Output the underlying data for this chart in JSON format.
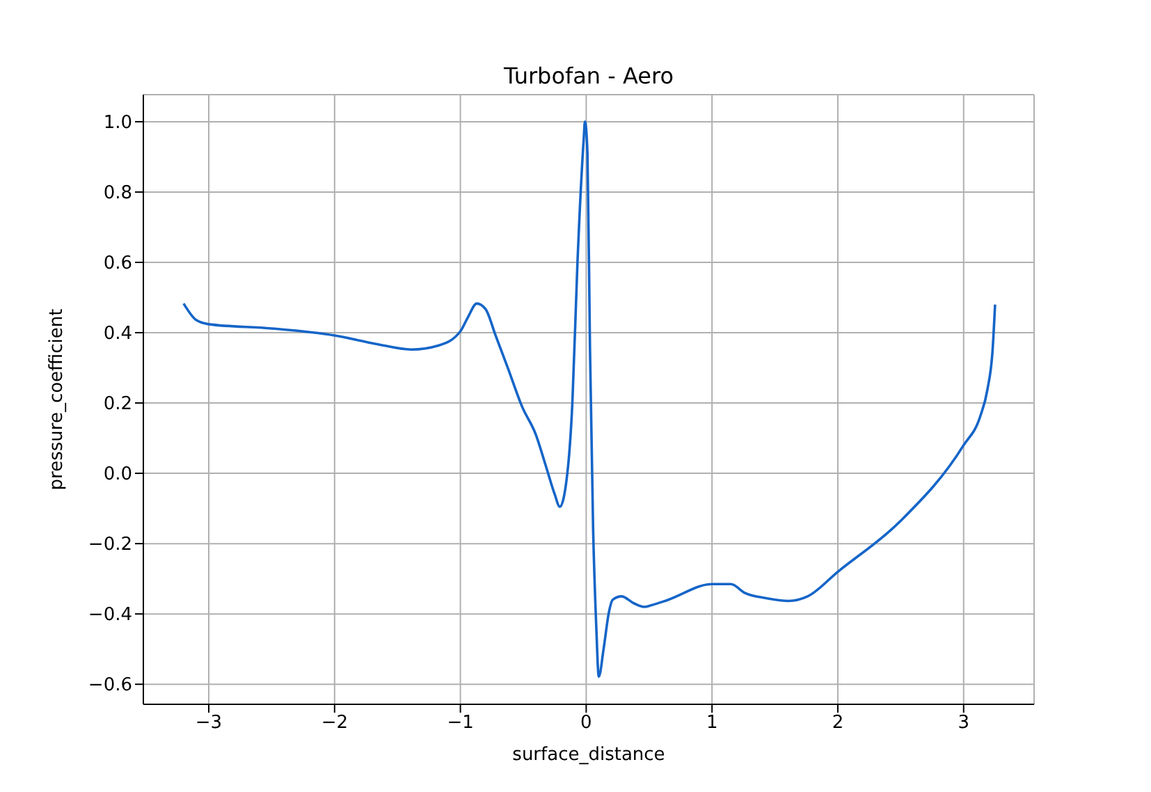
{
  "chart_data": {
    "type": "line",
    "title": "Turbofan - Aero",
    "xlabel": "surface_distance",
    "ylabel": "pressure_coefficient",
    "xlim": [
      -3.52,
      3.56
    ],
    "ylim": [
      -0.657,
      1.077
    ],
    "xticks": [
      {
        "value": -3,
        "label": "−3"
      },
      {
        "value": -2,
        "label": "−2"
      },
      {
        "value": -1,
        "label": "−1"
      },
      {
        "value": 0,
        "label": "0"
      },
      {
        "value": 1,
        "label": "1"
      },
      {
        "value": 2,
        "label": "2"
      },
      {
        "value": 3,
        "label": "3"
      }
    ],
    "yticks": [
      {
        "value": -0.6,
        "label": "−0.6"
      },
      {
        "value": -0.4,
        "label": "−0.4"
      },
      {
        "value": -0.2,
        "label": "−0.2"
      },
      {
        "value": 0,
        "label": "0.0"
      },
      {
        "value": 0.2,
        "label": "0.2"
      },
      {
        "value": 0.4,
        "label": "0.4"
      },
      {
        "value": 0.6,
        "label": "0.6"
      },
      {
        "value": 0.8,
        "label": "0.8"
      },
      {
        "value": 1,
        "label": "1.0"
      }
    ],
    "grid": true,
    "marker": "none",
    "line_style": "solid",
    "series": [
      {
        "color": "#1565c8",
        "x": [
          -3.2,
          -3.1,
          -3.0,
          -2.5,
          -2.0,
          -1.67,
          -1.39,
          -1.17,
          -1.0,
          -0.94,
          -0.87,
          -0.8,
          -0.72,
          -0.62,
          -0.51,
          -0.4,
          -0.32,
          -0.25,
          -0.21,
          -0.15,
          -0.11,
          -0.07,
          -0.02,
          -0.01,
          0.01,
          0.03,
          0.055,
          0.08,
          0.1,
          0.14,
          0.18,
          0.21,
          0.28,
          0.38,
          0.46,
          0.52,
          0.65,
          1.0,
          1.15,
          1.26,
          1.43,
          1.61,
          1.76,
          2.0,
          2.5,
          3.0,
          3.13,
          3.19,
          3.23,
          3.25
        ],
        "values": [
          0.483,
          0.436,
          0.424,
          0.412,
          0.392,
          0.368,
          0.352,
          0.364,
          0.404,
          0.444,
          0.483,
          0.467,
          0.392,
          0.297,
          0.19,
          0.11,
          0.02,
          -0.06,
          -0.095,
          0.0,
          0.2,
          0.594,
          0.95,
          1.0,
          0.91,
          0.356,
          -0.158,
          -0.436,
          -0.578,
          -0.495,
          -0.396,
          -0.36,
          -0.35,
          -0.37,
          -0.38,
          -0.375,
          -0.36,
          -0.315,
          -0.315,
          -0.34,
          -0.355,
          -0.363,
          -0.35,
          -0.28,
          -0.135,
          0.08,
          0.16,
          0.24,
          0.35,
          0.48
        ]
      }
    ]
  }
}
